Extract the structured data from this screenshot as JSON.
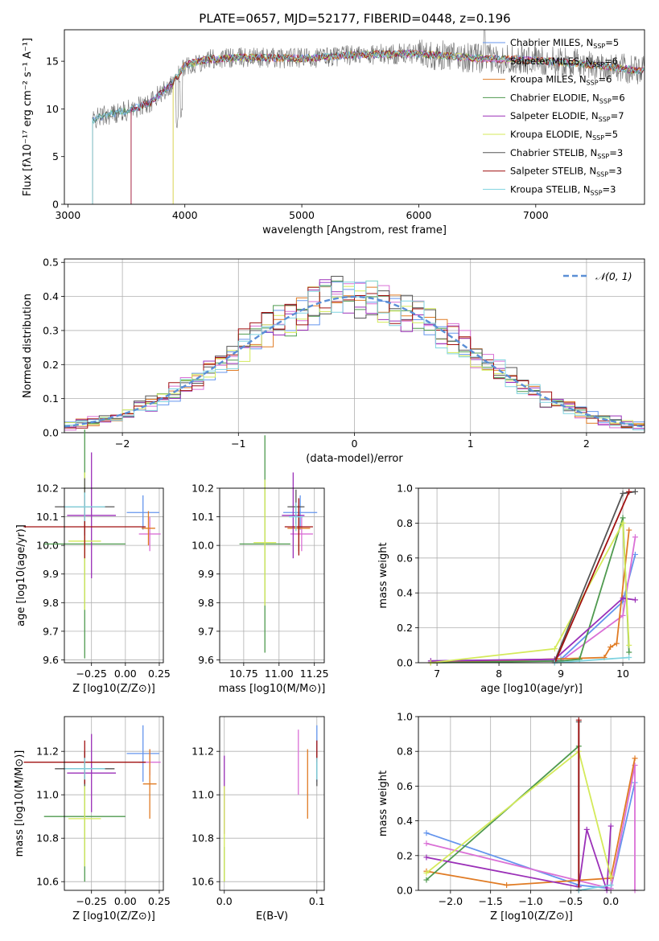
{
  "figure": {
    "title": "PLATE=0657, MJD=52177, FIBERID=0448, z=0.196",
    "palette": {
      "Chabrier MILES": "#6495ed",
      "Salpeter MILES": "#da70d6",
      "Kroupa MILES": "#e07b24",
      "Chabrier ELODIE": "#4f9a4f",
      "Salpeter ELODIE": "#9b30b8",
      "Kroupa ELODIE": "#d4ea5a",
      "Chabrier STELIB": "#555555",
      "Salpeter STELIB": "#a01010",
      "Kroupa STELIB": "#7fd3e0"
    }
  },
  "chart_data": [
    {
      "id": "spectrum",
      "type": "line",
      "xlabel": "wavelength [Angstrom, rest frame]",
      "ylabel": "Flux [fλ10⁻¹⁷ erg cm⁻² s⁻¹ A⁻¹]",
      "xlim": [
        2970,
        7930
      ],
      "ylim": [
        0,
        18.3
      ],
      "xticks": [
        "3000",
        "4000",
        "5000",
        "6000",
        "7000"
      ],
      "yticks": [
        "0",
        "5",
        "10",
        "15"
      ],
      "legend_position": "upper-right",
      "legend": [
        "Chabrier MILES, N_SSP=5",
        "Salpeter MILES, N_SSP=6",
        "Kroupa MILES, N_SSP=6",
        "Chabrier ELODIE, N_SSP=6",
        "Salpeter ELODIE, N_SSP=7",
        "Kroupa ELODIE, N_SSP=5",
        "Chabrier STELIB, N_SSP=3",
        "Salpeter STELIB, N_SSP=3",
        "Kroupa STELIB, N_SSP=3"
      ],
      "data_x": [
        3210,
        3300,
        3500,
        3700,
        3900,
        4000,
        4200,
        4500,
        5000,
        5500,
        6000,
        6500,
        7000,
        7500,
        7900
      ],
      "data_y": [
        8.8,
        9.3,
        9.8,
        10.6,
        12.8,
        14.6,
        15.2,
        15.4,
        15.3,
        15.7,
        15.8,
        15.3,
        15.1,
        14.6,
        14.0
      ],
      "model_starts": [
        3210,
        3540,
        3900,
        3210,
        3540,
        3900,
        3210,
        3540,
        3210
      ]
    },
    {
      "id": "residuals",
      "type": "line",
      "xlabel": "(data-model)/error",
      "ylabel": "Normed distribution",
      "xlim": [
        -2.5,
        2.5
      ],
      "ylim": [
        0,
        0.51
      ],
      "xticks": [
        "−2",
        "−1",
        "0",
        "1",
        "2"
      ],
      "yticks": [
        "0.0",
        "0.1",
        "0.2",
        "0.3",
        "0.4",
        "0.5"
      ],
      "legend": [
        "𝒩(0, 1)"
      ],
      "legend_position": "upper-right",
      "grid": true
    },
    {
      "id": "age-vs-Z",
      "type": "scatter",
      "xlabel": "Z [log10(Z/Z⊙)]",
      "ylabel": "age  [log10(age/yr)]",
      "xlim": [
        -0.45,
        0.28
      ],
      "ylim": [
        9.59,
        10.2
      ],
      "xticks": [
        "−0.25",
        "0.00",
        "0.25"
      ],
      "yticks": [
        "9.6",
        "9.7",
        "9.8",
        "9.9",
        "10.0",
        "10.1",
        "10.2"
      ],
      "grid": true,
      "points": [
        {
          "x": 0.13,
          "y": 10.115,
          "xerr": 0.12,
          "yerr": 0.06
        },
        {
          "x": 0.18,
          "y": 10.04,
          "xerr": 0.08,
          "yerr": 0.06
        },
        {
          "x": 0.17,
          "y": 10.06,
          "xerr": 0.05,
          "yerr": 0.06
        },
        {
          "x": -0.3,
          "y": 10.005,
          "xerr": 0.3,
          "yerr": 0.4
        },
        {
          "x": -0.25,
          "y": 10.105,
          "xerr": 0.18,
          "yerr": 0.22
        },
        {
          "x": -0.3,
          "y": 10.015,
          "xerr": 0.12,
          "yerr": 0.24
        },
        {
          "x": -0.3,
          "y": 10.135,
          "xerr": 0.22,
          "yerr": 0.1
        },
        {
          "x": -0.3,
          "y": 10.065,
          "xerr": 0.45,
          "yerr": 0.11
        },
        {
          "x": -0.3,
          "y": 10.135,
          "xerr": 0.15,
          "yerr": 0.05
        }
      ]
    },
    {
      "id": "age-vs-mass",
      "type": "scatter",
      "xlabel": "mass [log10(M/M⊙)]",
      "xlim": [
        10.58,
        11.32
      ],
      "ylim": [
        9.59,
        10.2
      ],
      "xticks": [
        "10.75",
        "11.00",
        "11.25"
      ],
      "yticks": [
        "9.6",
        "9.7",
        "9.8",
        "9.9",
        "10.0",
        "10.1",
        "10.2"
      ],
      "grid": true,
      "points": [
        {
          "x": 11.15,
          "y": 10.115,
          "xerr": 0.12,
          "yerr": 0.06
        },
        {
          "x": 11.16,
          "y": 10.04,
          "xerr": 0.08,
          "yerr": 0.06
        },
        {
          "x": 11.14,
          "y": 10.06,
          "xerr": 0.08,
          "yerr": 0.08
        },
        {
          "x": 10.9,
          "y": 10.005,
          "xerr": 0.18,
          "yerr": 0.38
        },
        {
          "x": 11.1,
          "y": 10.105,
          "xerr": 0.08,
          "yerr": 0.15
        },
        {
          "x": 10.9,
          "y": 10.01,
          "xerr": 0.08,
          "yerr": 0.22
        },
        {
          "x": 11.12,
          "y": 10.135,
          "xerr": 0.06,
          "yerr": 0.06
        },
        {
          "x": 11.14,
          "y": 10.065,
          "xerr": 0.1,
          "yerr": 0.1
        },
        {
          "x": 11.12,
          "y": 10.1,
          "xerr": 0.05,
          "yerr": 0.05
        }
      ]
    },
    {
      "id": "weight-vs-age",
      "type": "line",
      "xlabel": "age  [log10(age/yr)]",
      "ylabel": "mass weight",
      "xlim": [
        6.7,
        10.35
      ],
      "ylim": [
        0,
        1.0
      ],
      "xticks": [
        "7",
        "8",
        "9",
        "10"
      ],
      "yticks": [
        "0.0",
        "0.2",
        "0.4",
        "0.6",
        "0.8",
        "1.0"
      ],
      "grid": true,
      "series": [
        {
          "x": [
            6.9,
            9.0,
            10.0,
            10.2
          ],
          "y": [
            0.01,
            0.02,
            0.35,
            0.62
          ]
        },
        {
          "x": [
            6.9,
            9.0,
            10.0,
            10.2
          ],
          "y": [
            0.01,
            0.01,
            0.27,
            0.72
          ]
        },
        {
          "x": [
            6.9,
            9.7,
            9.8,
            9.9,
            10.1
          ],
          "y": [
            0.0,
            0.03,
            0.09,
            0.11,
            0.76
          ]
        },
        {
          "x": [
            6.9,
            9.0,
            9.3,
            10.0,
            10.1
          ],
          "y": [
            0.0,
            0.01,
            0.02,
            0.83,
            0.06
          ]
        },
        {
          "x": [
            6.9,
            8.9,
            10.0,
            10.2
          ],
          "y": [
            0.01,
            0.02,
            0.37,
            0.36
          ]
        },
        {
          "x": [
            6.9,
            8.9,
            10.0,
            10.1
          ],
          "y": [
            0.0,
            0.08,
            0.8,
            0.1
          ]
        },
        {
          "x": [
            8.9,
            10.0,
            10.2
          ],
          "y": [
            0.01,
            0.97,
            0.98
          ]
        },
        {
          "x": [
            8.9,
            10.1
          ],
          "y": [
            0.0,
            0.98
          ]
        },
        {
          "x": [
            8.9,
            10.1
          ],
          "y": [
            0.0,
            0.03
          ]
        }
      ]
    },
    {
      "id": "mass-vs-Z",
      "type": "scatter",
      "xlabel": "Z [log10(Z/Z⊙)]",
      "ylabel": "mass [log10(M/M⊙)]",
      "xlim": [
        -0.45,
        0.28
      ],
      "ylim": [
        10.56,
        11.36
      ],
      "xticks": [
        "−0.25",
        "0.00",
        "0.25"
      ],
      "yticks": [
        "10.6",
        "10.8",
        "11.0",
        "11.2"
      ],
      "grid": true,
      "points": [
        {
          "x": 0.13,
          "y": 11.19,
          "xerr": 0.12,
          "yerr": 0.13
        },
        {
          "x": 0.18,
          "y": 11.15,
          "xerr": 0.08,
          "yerr": 0.06
        },
        {
          "x": 0.18,
          "y": 11.05,
          "xerr": 0.05,
          "yerr": 0.16
        },
        {
          "x": -0.3,
          "y": 10.9,
          "xerr": 0.3,
          "yerr": 0.3
        },
        {
          "x": -0.25,
          "y": 11.1,
          "xerr": 0.18,
          "yerr": 0.18
        },
        {
          "x": -0.3,
          "y": 10.89,
          "xerr": 0.12,
          "yerr": 0.22
        },
        {
          "x": -0.3,
          "y": 11.12,
          "xerr": 0.22,
          "yerr": 0.08
        },
        {
          "x": -0.3,
          "y": 11.15,
          "xerr": 0.45,
          "yerr": 0.1
        },
        {
          "x": -0.3,
          "y": 11.12,
          "xerr": 0.15,
          "yerr": 0.05
        }
      ]
    },
    {
      "id": "mass-vs-EBV",
      "type": "scatter",
      "xlabel": "E(B-V)",
      "xlim": [
        -0.005,
        0.108
      ],
      "ylim": [
        10.56,
        11.36
      ],
      "xticks": [
        "0.0",
        "0.1"
      ],
      "yticks": [
        "10.6",
        "10.8",
        "11.0",
        "11.2"
      ],
      "grid": true,
      "points": [
        {
          "x": 0.1,
          "y": 11.19,
          "xerr": 0,
          "yerr": 0.13
        },
        {
          "x": 0.08,
          "y": 11.15,
          "xerr": 0,
          "yerr": 0.15
        },
        {
          "x": 0.09,
          "y": 11.05,
          "xerr": 0,
          "yerr": 0.16
        },
        {
          "x": 0.0,
          "y": 10.68,
          "xerr": 0,
          "yerr": 0.08
        },
        {
          "x": 0.0,
          "y": 11.0,
          "xerr": 0,
          "yerr": 0.18
        },
        {
          "x": 0.0,
          "y": 10.82,
          "xerr": 0,
          "yerr": 0.22
        },
        {
          "x": 0.1,
          "y": 11.12,
          "xerr": 0,
          "yerr": 0.08
        },
        {
          "x": 0.1,
          "y": 11.2,
          "xerr": 0,
          "yerr": 0.05
        },
        {
          "x": 0.1,
          "y": 11.12,
          "xerr": 0,
          "yerr": 0.05
        }
      ]
    },
    {
      "id": "weight-vs-Z",
      "type": "line",
      "xlabel": "Z [log10(Z/Z⊙)]",
      "ylabel": "mass weight",
      "xlim": [
        -2.4,
        0.42
      ],
      "ylim": [
        0,
        1.0
      ],
      "xticks": [
        "−2.0",
        "−1.5",
        "−1.0",
        "−0.5",
        "0.0"
      ],
      "yticks": [
        "0.0",
        "0.2",
        "0.4",
        "0.6",
        "0.8",
        "1.0"
      ],
      "grid": true,
      "series": [
        {
          "x": [
            -2.3,
            -0.4,
            0.0,
            0.3
          ],
          "y": [
            0.33,
            0.03,
            0.01,
            0.62
          ]
        },
        {
          "x": [
            -2.3,
            0.0,
            0.3,
            0.3
          ],
          "y": [
            0.27,
            0.01,
            0.72,
            0.0
          ]
        },
        {
          "x": [
            -2.3,
            -1.3,
            0.0,
            0.3
          ],
          "y": [
            0.11,
            0.03,
            0.07,
            0.76
          ]
        },
        {
          "x": [
            -2.3,
            -0.4
          ],
          "y": [
            0.06,
            0.83
          ]
        },
        {
          "x": [
            -2.3,
            -0.4,
            -0.3,
            -0.05,
            0.0
          ],
          "y": [
            0.19,
            0.02,
            0.35,
            0.0,
            0.37
          ]
        },
        {
          "x": [
            -2.3,
            -0.4,
            0.0
          ],
          "y": [
            0.1,
            0.8,
            0.08
          ]
        },
        {
          "x": [
            -0.4,
            -0.4
          ],
          "y": [
            0.0,
            0.97
          ]
        },
        {
          "x": [
            -0.4,
            -0.4
          ],
          "y": [
            0.0,
            0.98
          ]
        },
        {
          "x": [
            -0.4,
            0.0
          ],
          "y": [
            0.0,
            0.03
          ]
        }
      ]
    }
  ]
}
